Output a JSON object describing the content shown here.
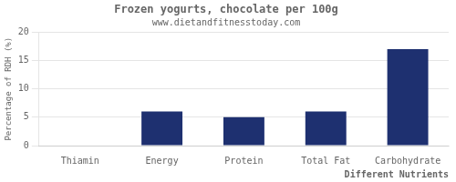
{
  "chart_data": {
    "type": "bar",
    "title": "Frozen yogurts, chocolate per 100g",
    "subtitle": "www.dietandfitnesstoday.com",
    "xlabel": "Different Nutrients",
    "ylabel": "Percentage of RDH (%)",
    "categories": [
      "Thiamin",
      "Energy",
      "Protein",
      "Total Fat",
      "Carbohydrate"
    ],
    "values": [
      0,
      6,
      5,
      6,
      17
    ],
    "color": "#1e3070",
    "ylim": [
      0,
      20
    ],
    "yticks": [
      0,
      5,
      10,
      15,
      20
    ],
    "grid": true
  }
}
